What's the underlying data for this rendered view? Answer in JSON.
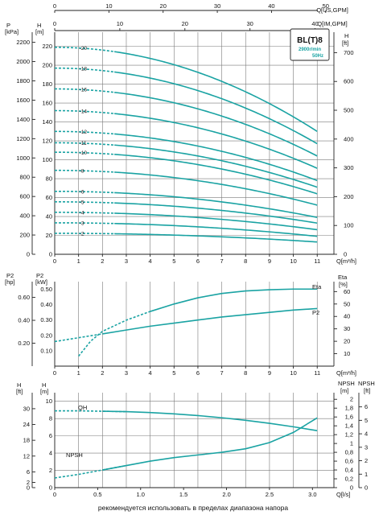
{
  "model": {
    "name": "BL(T)8",
    "speed": "2900r/min",
    "freq": "50Hz"
  },
  "top_axis": {
    "usgpm_label": "Q[US,GPM]",
    "usgpm_ticks": [
      0,
      10,
      20,
      30,
      40,
      50
    ],
    "impgpm_label": "Q[IM,GPM]",
    "impgpm_ticks": [
      0,
      10,
      20,
      30,
      40
    ]
  },
  "chart_data": [
    {
      "type": "line",
      "x": [
        0,
        1,
        2,
        3,
        4,
        5,
        6,
        7,
        8,
        9,
        10,
        11
      ],
      "xlabel": "Q[m³/h]",
      "xlim": [
        0,
        11
      ],
      "y_left_outer": {
        "label": "P",
        "unit": "[kPa]",
        "ticks": [
          0,
          200,
          400,
          600,
          800,
          1000,
          1200,
          1400,
          1600,
          1800,
          2000,
          2200
        ]
      },
      "y_left_inner": {
        "label": "H",
        "unit": "[m]",
        "ticks": [
          0,
          20,
          40,
          60,
          80,
          100,
          120,
          140,
          160,
          180,
          200,
          220
        ],
        "ylim": [
          0,
          235
        ]
      },
      "y_right": {
        "label": "H",
        "unit": "[ft]",
        "ticks": [
          0,
          100,
          200,
          300,
          400,
          500,
          600,
          700
        ]
      },
      "dashed_until_q": 2.5,
      "series": [
        {
          "name": "-2",
          "h0": 22.2,
          "h11": 13.0
        },
        {
          "name": "-3",
          "h0": 33.3,
          "h11": 19.0
        },
        {
          "name": "-4",
          "h0": 44.4,
          "h11": 26.0
        },
        {
          "name": "-5",
          "h0": 55.5,
          "h11": 33.0
        },
        {
          "name": "-6",
          "h0": 66.6,
          "h11": 39.0
        },
        {
          "name": "-8",
          "h0": 88.8,
          "h11": 52.0
        },
        {
          "name": "-10",
          "h0": 108.0,
          "h11": 64.0
        },
        {
          "name": "-11",
          "h0": 118.0,
          "h11": 71.0
        },
        {
          "name": "-12",
          "h0": 130.0,
          "h11": 78.0
        },
        {
          "name": "-14",
          "h0": 152.0,
          "h11": 91.0
        },
        {
          "name": "-16",
          "h0": 175.0,
          "h11": 104.0
        },
        {
          "name": "-18",
          "h0": 197.0,
          "h11": 117.0
        },
        {
          "name": "-20",
          "h0": 219.0,
          "h11": 130.0
        }
      ]
    },
    {
      "type": "line",
      "x": [
        0,
        1,
        2,
        3,
        4,
        5,
        6,
        7,
        8,
        9,
        10,
        11
      ],
      "xlabel": "Q[m³/h]",
      "xlim": [
        0,
        11
      ],
      "y_left_outer": {
        "label": "P2",
        "unit": "[hp]",
        "ticks": [
          0.2,
          0.4,
          0.6
        ]
      },
      "y_left_inner": {
        "label": "P2",
        "unit": "[kW]",
        "ticks": [
          0.1,
          0.2,
          0.3,
          0.4,
          0.5
        ],
        "ylim": [
          0,
          0.55
        ]
      },
      "y_right": {
        "label": "Eta",
        "unit": "[%]",
        "ticks": [
          10,
          20,
          30,
          40,
          50,
          60
        ]
      },
      "series": [
        {
          "name": "Eta",
          "axis": "right",
          "x": [
            1,
            1.5,
            2,
            3,
            4,
            5,
            6,
            7,
            8,
            9,
            10,
            11
          ],
          "values": [
            8,
            20,
            28,
            37,
            44,
            50,
            55,
            58.5,
            60.5,
            61.5,
            62,
            62
          ],
          "dashed_until": 4.5
        },
        {
          "name": "P2",
          "axis": "left",
          "x": [
            0,
            1,
            2,
            3,
            4,
            5,
            6,
            7,
            8,
            9,
            10,
            11
          ],
          "values": [
            0.16,
            0.185,
            0.21,
            0.235,
            0.26,
            0.28,
            0.3,
            0.32,
            0.335,
            0.35,
            0.365,
            0.375
          ],
          "dashed_until": 2.5
        }
      ]
    },
    {
      "type": "line",
      "x": [
        0,
        1,
        2,
        3,
        4,
        5,
        6,
        7,
        8,
        9,
        10,
        11
      ],
      "xlabel": "Q[l/s]",
      "xlim": [
        0,
        11
      ],
      "x_ticks_ls": [
        "0",
        "0.5",
        "1.0",
        "1.5",
        "2.0",
        "2.5",
        "3.0"
      ],
      "y_left_outer": {
        "label": "H",
        "unit": "[ft]",
        "ticks": [
          0,
          2,
          6,
          12,
          18,
          24,
          30
        ]
      },
      "y_left_inner": {
        "label": "H",
        "unit": "[m]",
        "ticks": [
          0,
          2,
          4,
          6,
          8,
          10
        ],
        "ylim": [
          0,
          11
        ]
      },
      "y_right_inner": {
        "label": "NPSH",
        "unit": "[m]",
        "ticks": [
          "0",
          "0,2",
          "0,4",
          "0,6",
          "0,8",
          "1",
          "1,2",
          "1,4",
          "1,6",
          "1,8",
          "2"
        ]
      },
      "y_right_outer": {
        "label": "NPSH",
        "unit": "[ft]",
        "ticks": [
          0,
          1,
          2,
          3,
          4,
          5,
          6
        ]
      },
      "series": [
        {
          "name": "QH",
          "axis": "left",
          "x": [
            0,
            1,
            2,
            3,
            4,
            5,
            6,
            7,
            8,
            9,
            10,
            11
          ],
          "values": [
            8.9,
            8.9,
            8.85,
            8.8,
            8.7,
            8.55,
            8.35,
            8.1,
            7.8,
            7.45,
            7.05,
            6.6
          ],
          "dashed_until": 2.5
        },
        {
          "name": "NPSH",
          "axis": "right",
          "x": [
            0,
            1,
            2,
            3,
            4,
            5,
            6,
            7,
            8,
            9,
            10,
            11
          ],
          "values": [
            0.22,
            0.3,
            0.4,
            0.5,
            0.6,
            0.68,
            0.74,
            0.8,
            0.88,
            1.02,
            1.25,
            1.58
          ],
          "dashed_until": 2.5
        }
      ]
    }
  ],
  "footer_text": "рекомендуется использовать в пределах диапазона напора"
}
